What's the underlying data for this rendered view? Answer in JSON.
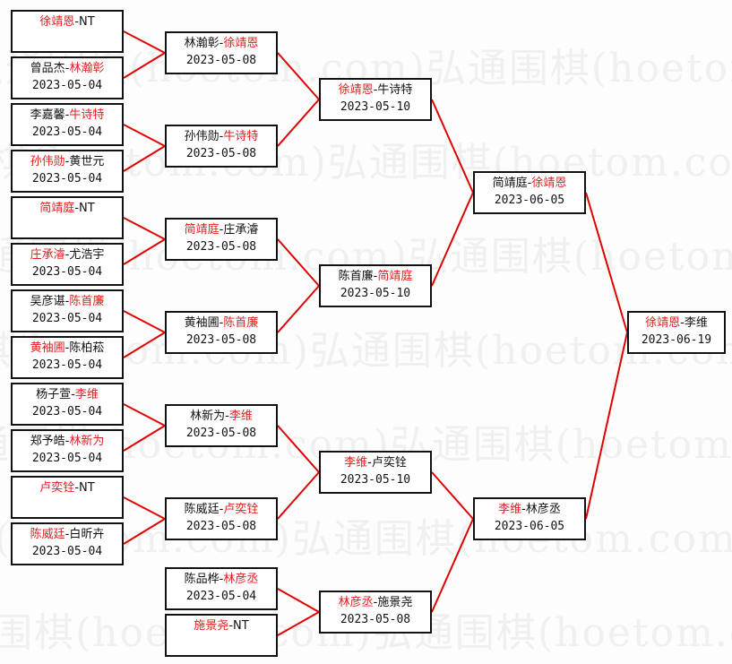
{
  "watermark": "弘通围棋(hoetom.com)",
  "colors": {
    "winner": "#e02020",
    "connector": "#e00000",
    "border": "#111111"
  },
  "matches": [
    {
      "p1": "徐靖恩",
      "p2": "NT",
      "winner": 1,
      "date": ""
    },
    {
      "p1": "曾品杰",
      "p2": "林瀚彰",
      "winner": 2,
      "date": "2023-05-04"
    },
    {
      "p1": "李嘉馨",
      "p2": "牛诗特",
      "winner": 2,
      "date": "2023-05-04"
    },
    {
      "p1": "孙伟勋",
      "p2": "黄世元",
      "winner": 1,
      "date": "2023-05-04"
    },
    {
      "p1": "简靖庭",
      "p2": "NT",
      "winner": 1,
      "date": ""
    },
    {
      "p1": "庄承濬",
      "p2": "尤浩宇",
      "winner": 1,
      "date": "2023-05-04"
    },
    {
      "p1": "吴彦谌",
      "p2": "陈首廉",
      "winner": 2,
      "date": "2023-05-04"
    },
    {
      "p1": "黄袖圃",
      "p2": "陈柏菘",
      "winner": 1,
      "date": "2023-05-04"
    },
    {
      "p1": "杨子萱",
      "p2": "李维",
      "winner": 2,
      "date": "2023-05-04"
    },
    {
      "p1": "郑予皓",
      "p2": "林新为",
      "winner": 2,
      "date": "2023-05-04"
    },
    {
      "p1": "卢奕铨",
      "p2": "NT",
      "winner": 1,
      "date": ""
    },
    {
      "p1": "陈威廷",
      "p2": "白昕卉",
      "winner": 1,
      "date": "2023-05-04"
    },
    {
      "p1": "林瀚彰",
      "p2": "徐靖恩",
      "winner": 2,
      "date": "2023-05-08"
    },
    {
      "p1": "孙伟勋",
      "p2": "牛诗特",
      "winner": 2,
      "date": "2023-05-08"
    },
    {
      "p1": "简靖庭",
      "p2": "庄承濬",
      "winner": 1,
      "date": "2023-05-08"
    },
    {
      "p1": "黄袖圃",
      "p2": "陈首廉",
      "winner": 2,
      "date": "2023-05-08"
    },
    {
      "p1": "林新为",
      "p2": "李维",
      "winner": 2,
      "date": "2023-05-08"
    },
    {
      "p1": "陈威廷",
      "p2": "卢奕铨",
      "winner": 2,
      "date": "2023-05-08"
    },
    {
      "p1": "陈品桦",
      "p2": "林彦丞",
      "winner": 2,
      "date": "2023-05-04"
    },
    {
      "p1": "施景尧",
      "p2": "NT",
      "winner": 1,
      "date": ""
    },
    {
      "p1": "徐靖恩",
      "p2": "牛诗特",
      "winner": 1,
      "date": "2023-05-10"
    },
    {
      "p1": "陈首廉",
      "p2": "简靖庭",
      "winner": 2,
      "date": "2023-05-10"
    },
    {
      "p1": "李维",
      "p2": "卢奕铨",
      "winner": 1,
      "date": "2023-05-10"
    },
    {
      "p1": "林彦丞",
      "p2": "施景尧",
      "winner": 1,
      "date": "2023-05-08"
    },
    {
      "p1": "简靖庭",
      "p2": "徐靖恩",
      "winner": 2,
      "date": "2023-06-05"
    },
    {
      "p1": "李维",
      "p2": "林彦丞",
      "winner": 1,
      "date": "2023-06-05"
    },
    {
      "p1": "徐靖恩",
      "p2": "李维",
      "winner": 1,
      "date": "2023-06-19"
    }
  ]
}
